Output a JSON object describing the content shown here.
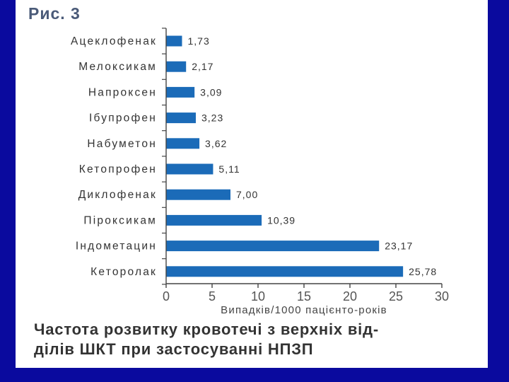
{
  "figure_label": "Рис. 3",
  "chart_data": {
    "type": "bar",
    "orientation": "horizontal",
    "categories": [
      "Ацеклофенак",
      "Мелоксикам",
      "Напроксен",
      "Ібупрофен",
      "Набуметон",
      "Кетопрофен",
      "Диклофенак",
      "Піроксикам",
      "Індометацин",
      "Кеторолак"
    ],
    "values": [
      1.73,
      2.17,
      3.09,
      3.23,
      3.62,
      5.11,
      7.0,
      10.39,
      23.17,
      25.78
    ],
    "value_labels": [
      "1,73",
      "2,17",
      "3,09",
      "3,23",
      "3,62",
      "5,11",
      "7,00",
      "10,39",
      "23,17",
      "25,78"
    ],
    "xlabel": "Випадків/1000 пацієнто-років",
    "xlim": [
      0,
      30
    ],
    "xticks": [
      0,
      5,
      10,
      15,
      20,
      25,
      30
    ],
    "grid": false,
    "bar_color": "#1b6bb8"
  },
  "caption": {
    "line1": "Частота розвитку кровотечі з верхніх від-",
    "line2": "ділів ШКТ при застосуванні НПЗП"
  },
  "colors": {
    "background": "#0a0a9e",
    "panel": "#ffffff",
    "axis": "#444444"
  }
}
